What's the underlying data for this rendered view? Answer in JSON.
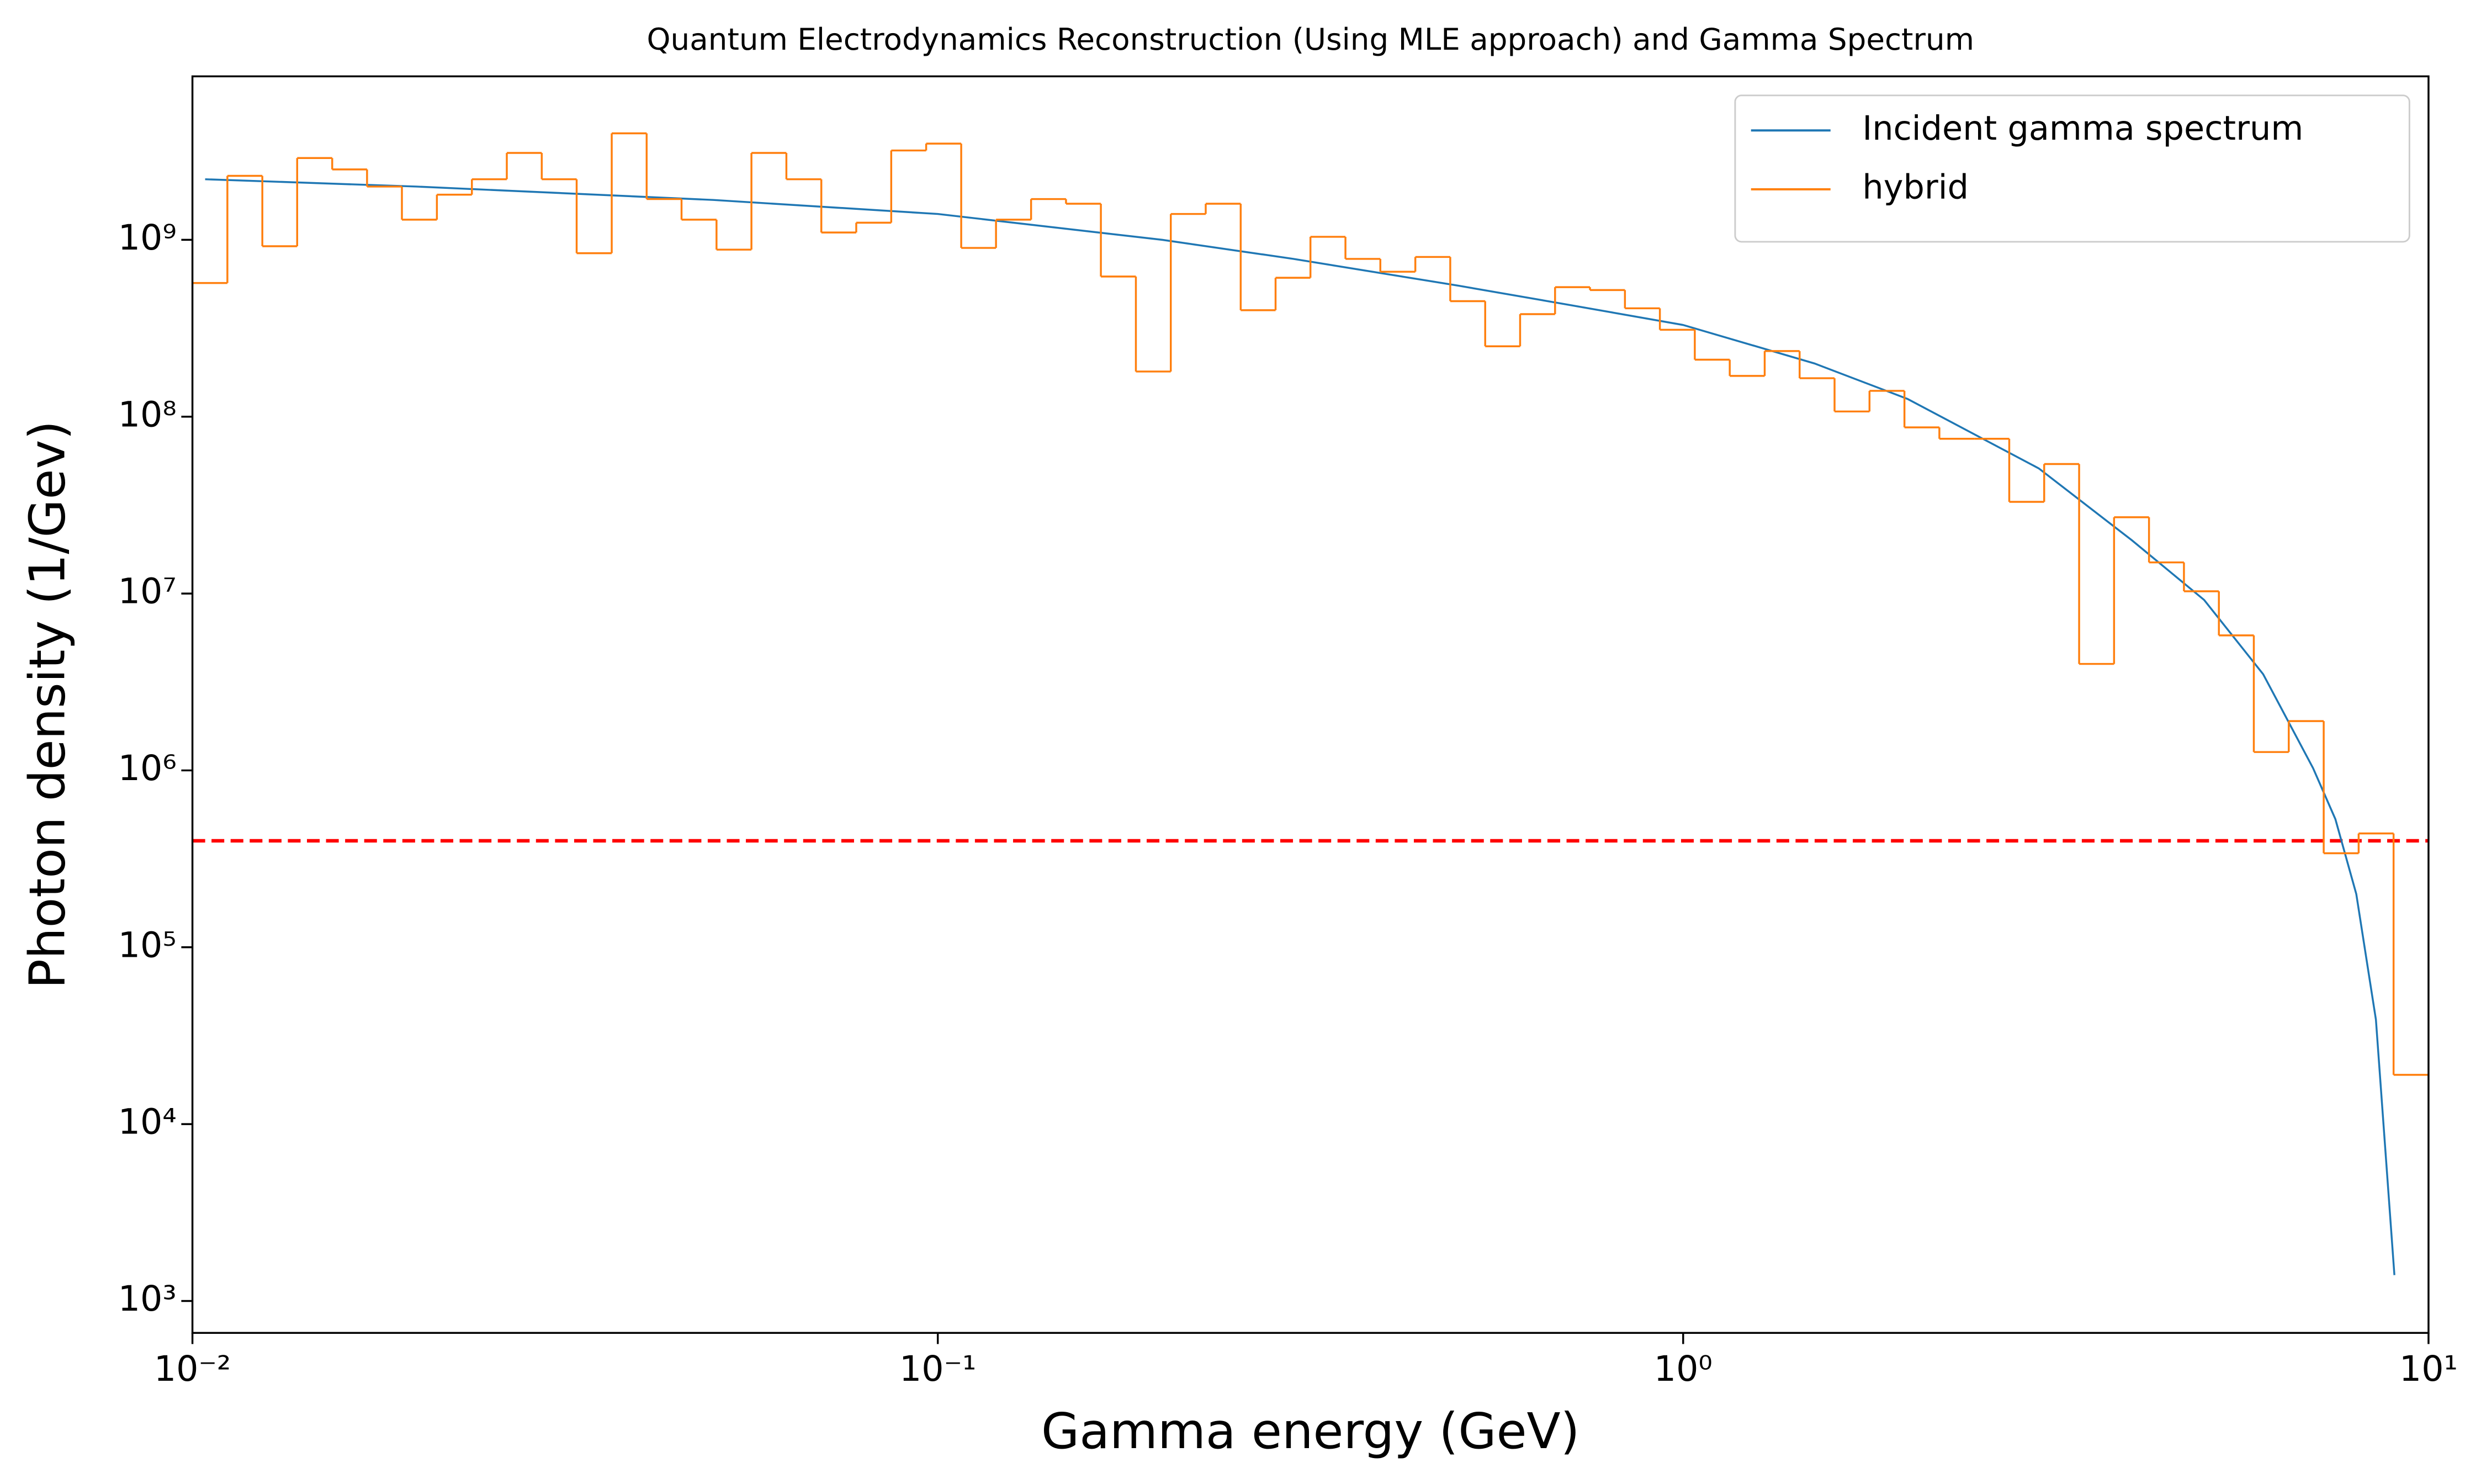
{
  "chart_data": {
    "type": "line",
    "title": "Quantum Electrodynamics Reconstruction (Using MLE approach) and Gamma Spectrum",
    "xlabel": "Gamma energy (GeV)",
    "ylabel": "Photon density (1/Gev)",
    "xscale": "log",
    "yscale": "log",
    "xlim": [
      0.01,
      10
    ],
    "ylim": [
      660,
      8400000000
    ],
    "xticks": [
      {
        "value": 0.01,
        "label": "10⁻²"
      },
      {
        "value": 0.1,
        "label": "10⁻¹"
      },
      {
        "value": 1,
        "label": "10⁰"
      },
      {
        "value": 10,
        "label": "10¹"
      }
    ],
    "yticks": [
      {
        "value": 1000,
        "label": "10³"
      },
      {
        "value": 10000,
        "label": "10⁴"
      },
      {
        "value": 100000,
        "label": "10⁵"
      },
      {
        "value": 1000000,
        "label": "10⁶"
      },
      {
        "value": 10000000,
        "label": "10⁷"
      },
      {
        "value": 100000000,
        "label": "10⁸"
      },
      {
        "value": 1000000000,
        "label": "10⁹"
      }
    ],
    "legend": "upper right",
    "hline": {
      "value": 400000,
      "color": "#ff0000",
      "style": "dashed"
    },
    "series": [
      {
        "name": "Incident gamma spectrum",
        "color": "#1f77b4",
        "kind": "line",
        "x": [
          0.0104,
          0.02,
          0.05,
          0.1,
          0.2,
          0.3,
          0.5,
          0.7,
          1.0,
          1.5,
          2.0,
          3.0,
          4.0,
          5.0,
          6.0,
          7.0,
          7.5,
          8.0,
          8.5,
          9.0
        ],
        "values": [
          2200000000,
          2000000000,
          1680000000,
          1400000000,
          1000000000,
          780000000,
          550000000,
          430000000,
          330000000,
          200000000,
          126000000,
          51000000,
          20000000,
          9200000,
          3500000,
          1030000,
          530000,
          200000,
          39000,
          1400
        ]
      },
      {
        "name": "hybrid",
        "color": "#ff7f0e",
        "kind": "step",
        "bins": [
          0.01,
          0.01114,
          0.01241,
          0.01382,
          0.0154,
          0.01715,
          0.0191,
          0.02128,
          0.02371,
          0.02641,
          0.02942,
          0.03277,
          0.03652,
          0.04068,
          0.04531,
          0.05048,
          0.05623,
          0.06264,
          0.06978,
          0.07773,
          0.0866,
          0.09647,
          0.1075,
          0.1197,
          0.1334,
          0.1486,
          0.1655,
          0.1844,
          0.2054,
          0.2288,
          0.2549,
          0.2839,
          0.3162,
          0.3523,
          0.3924,
          0.4372,
          0.487,
          0.5425,
          0.6043,
          0.6732,
          0.7499,
          0.8354,
          0.9306,
          1.0366,
          1.1548,
          1.2864,
          1.433,
          1.5963,
          1.7783,
          1.981,
          2.2067,
          2.4582,
          2.7384,
          3.0505,
          3.3982,
          3.7855,
          4.217,
          4.6976,
          5.2329,
          5.8293,
          6.4938,
          7.2339,
          8.0584,
          8.9769,
          10
        ],
        "values": [
          570000000,
          2300000000,
          920000000,
          2900000000,
          2500000000,
          2000000000,
          1300000000,
          1800000000,
          2200000000,
          3100000000,
          2200000000,
          840000000,
          4000000000,
          1700000000,
          1300000000,
          880000000,
          3100000000,
          2200000000,
          1100000000,
          1250000000,
          3200000000,
          3500000000,
          900000000,
          1300000000,
          1700000000,
          1600000000,
          620000000,
          180000000,
          1400000000,
          1600000000,
          400000000,
          610000000,
          1040000000,
          780000000,
          660000000,
          800000000,
          450000000,
          250000000,
          380000000,
          540000000,
          520000000,
          410000000,
          310000000,
          210000000,
          170000000,
          235000000,
          165000000,
          107000000,
          140000000,
          87000000,
          75000000,
          75000000,
          33000000,
          54000000,
          4000000,
          27000000,
          15000000,
          10300000,
          5800000,
          1270000,
          1900000,
          340000,
          440000,
          19000
        ]
      }
    ]
  }
}
